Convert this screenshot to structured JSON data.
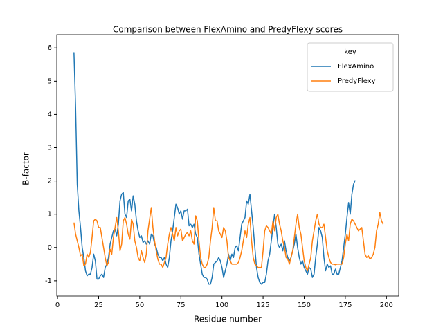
{
  "chart_data": {
    "type": "line",
    "title": "Comparison between FlexAmino and PredyFlexy scores",
    "x_label": "Residue number",
    "y_label": "B-factor",
    "legend_title": "key",
    "legend": "upper right",
    "xlim": [
      -0.45,
      207.45
    ],
    "ylim": [
      -1.46,
      6.4
    ],
    "xticks": [
      0,
      25,
      50,
      75,
      100,
      125,
      150,
      175,
      200
    ],
    "yticks": [
      -1,
      0,
      1,
      2,
      3,
      4,
      5,
      6
    ],
    "x": [
      10,
      11,
      12,
      13,
      14,
      15,
      16,
      17,
      18,
      19,
      20,
      21,
      22,
      23,
      24,
      25,
      26,
      27,
      28,
      29,
      30,
      31,
      32,
      33,
      34,
      35,
      36,
      37,
      38,
      39,
      40,
      41,
      42,
      43,
      44,
      45,
      46,
      47,
      48,
      49,
      50,
      51,
      52,
      53,
      54,
      55,
      56,
      57,
      58,
      59,
      60,
      61,
      62,
      63,
      64,
      65,
      66,
      67,
      68,
      69,
      70,
      71,
      72,
      73,
      74,
      75,
      76,
      77,
      78,
      79,
      80,
      81,
      82,
      83,
      84,
      85,
      86,
      87,
      88,
      89,
      90,
      91,
      92,
      93,
      94,
      95,
      96,
      97,
      98,
      99,
      100,
      101,
      102,
      103,
      104,
      105,
      106,
      107,
      108,
      109,
      110,
      111,
      112,
      113,
      114,
      115,
      116,
      117,
      118,
      119,
      120,
      121,
      122,
      123,
      124,
      125,
      126,
      127,
      128,
      129,
      130,
      131,
      132,
      133,
      134,
      135,
      136,
      137,
      138,
      139,
      140,
      141,
      142,
      143,
      144,
      145,
      146,
      147,
      148,
      149,
      150,
      151,
      152,
      153,
      154,
      155,
      156,
      157,
      158,
      159,
      160,
      161,
      162,
      163,
      164,
      165,
      166,
      167,
      168,
      169,
      170,
      171,
      172,
      173,
      174,
      175,
      176,
      177,
      178,
      179,
      180,
      181,
      182,
      183,
      184,
      185,
      186,
      187,
      188,
      189,
      190,
      191,
      192,
      193,
      194,
      195,
      196,
      197,
      198
    ],
    "series": [
      {
        "name": "FlexAmino",
        "color": "#1f77b4",
        "values": [
          5.87,
          4.2,
          1.9,
          1.1,
          0.6,
          0.0,
          -0.3,
          -0.7,
          -0.85,
          -0.8,
          -0.8,
          -0.6,
          -0.2,
          -0.4,
          -0.95,
          -0.95,
          -0.85,
          -0.8,
          -0.9,
          -0.6,
          -0.5,
          -0.3,
          0.1,
          0.3,
          0.5,
          0.55,
          0.35,
          0.7,
          1.4,
          1.6,
          1.65,
          1.0,
          0.9,
          1.4,
          1.45,
          1.1,
          1.55,
          1.3,
          0.8,
          0.5,
          0.3,
          0.35,
          0.15,
          0.2,
          0.1,
          0.2,
          0.1,
          0.4,
          0.35,
          0.1,
          0.0,
          -0.2,
          -0.3,
          -0.3,
          -0.4,
          -0.3,
          -0.5,
          -0.6,
          -0.3,
          0.2,
          0.5,
          0.9,
          1.3,
          1.2,
          1.0,
          1.1,
          0.85,
          1.1,
          1.1,
          1.15,
          0.65,
          0.7,
          0.6,
          0.7,
          0.4,
          0.3,
          -0.2,
          -0.5,
          -0.8,
          -0.9,
          -0.9,
          -0.95,
          -1.1,
          -1.1,
          -0.9,
          -0.5,
          -0.45,
          -0.4,
          -0.3,
          -0.4,
          -0.6,
          -0.9,
          -0.7,
          -0.5,
          -0.2,
          -0.4,
          -0.2,
          -0.3,
          0.0,
          0.05,
          -0.1,
          0.3,
          0.7,
          0.8,
          0.9,
          1.4,
          1.3,
          1.6,
          1.1,
          0.6,
          0.0,
          -0.6,
          -0.9,
          -1.05,
          -1.1,
          -1.05,
          -1.05,
          -0.8,
          -0.4,
          -0.2,
          0.2,
          0.6,
          1.0,
          0.6,
          0.1,
          0.0,
          0.1,
          -0.1,
          0.2,
          -0.1,
          -0.3,
          -0.4,
          -0.3,
          -0.1,
          0.1,
          0.4,
          0.0,
          -0.3,
          -0.5,
          -0.4,
          -0.6,
          -0.7,
          -0.8,
          -0.6,
          -0.65,
          -0.9,
          -0.8,
          -0.3,
          0.1,
          0.6,
          0.5,
          0.3,
          -0.3,
          -0.7,
          -0.5,
          -0.6,
          -0.55,
          -0.8,
          -0.8,
          -0.65,
          -0.8,
          -0.8,
          -0.6,
          -0.4,
          0.0,
          0.4,
          0.9,
          1.35,
          1.0,
          1.6,
          1.9,
          2.02,
          null,
          null,
          null,
          null,
          null,
          null,
          null,
          null,
          null,
          null,
          null,
          null,
          null,
          null,
          null,
          null,
          null
        ]
      },
      {
        "name": "PredyFlexy",
        "color": "#ff7f0e",
        "values": [
          0.75,
          0.4,
          0.2,
          0.0,
          -0.25,
          -0.2,
          -0.55,
          -0.5,
          -0.2,
          -0.3,
          -0.15,
          0.3,
          0.8,
          0.85,
          0.8,
          0.6,
          0.6,
          0.3,
          0.0,
          -0.3,
          -0.55,
          -0.45,
          -0.05,
          -0.2,
          0.3,
          0.6,
          0.9,
          0.5,
          -0.1,
          0.1,
          0.8,
          0.9,
          0.7,
          0.4,
          0.25,
          0.85,
          0.7,
          0.2,
          0.0,
          -0.3,
          -0.4,
          -0.1,
          -0.3,
          -0.45,
          -0.2,
          0.5,
          0.85,
          1.2,
          0.6,
          0.2,
          -0.1,
          -0.35,
          -0.5,
          -0.5,
          -0.6,
          -0.45,
          -0.3,
          0.1,
          0.4,
          0.6,
          0.4,
          0.2,
          0.6,
          0.35,
          0.5,
          0.55,
          0.2,
          0.3,
          0.4,
          0.45,
          0.35,
          0.5,
          0.2,
          0.1,
          0.95,
          0.8,
          0.2,
          -0.3,
          -0.5,
          -0.6,
          -0.6,
          -0.5,
          -0.3,
          0.2,
          0.6,
          1.2,
          0.8,
          0.8,
          0.5,
          0.4,
          0.3,
          0.6,
          0.5,
          0.2,
          -0.3,
          -0.4,
          -0.5,
          -0.5,
          -0.5,
          -0.5,
          -0.45,
          -0.3,
          -0.1,
          0.2,
          0.5,
          0.3,
          0.7,
          0.9,
          0.2,
          -0.3,
          -0.5,
          -0.55,
          -0.6,
          -0.6,
          -0.6,
          -0.1,
          0.5,
          0.65,
          0.6,
          0.5,
          0.4,
          0.8,
          0.5,
          0.9,
          1.0,
          0.7,
          0.5,
          0.2,
          0.0,
          -0.3,
          -0.35,
          -0.5,
          -0.3,
          -0.1,
          0.3,
          0.7,
          1.0,
          0.6,
          0.4,
          0.0,
          -0.4,
          -0.6,
          -0.7,
          -0.5,
          -0.3,
          0.2,
          0.5,
          0.8,
          1.0,
          0.7,
          0.6,
          0.6,
          0.7,
          0.3,
          -0.1,
          -0.3,
          -0.45,
          -0.5,
          -0.5,
          -0.52,
          -0.5,
          -0.5,
          -0.5,
          -0.5,
          -0.3,
          0.1,
          0.4,
          0.2,
          0.7,
          0.85,
          0.8,
          0.7,
          0.6,
          0.5,
          0.55,
          0.6,
          0.2,
          -0.2,
          -0.3,
          -0.25,
          -0.35,
          -0.3,
          -0.2,
          0.0,
          0.5,
          0.7,
          1.05,
          0.8,
          0.7
        ]
      }
    ]
  }
}
